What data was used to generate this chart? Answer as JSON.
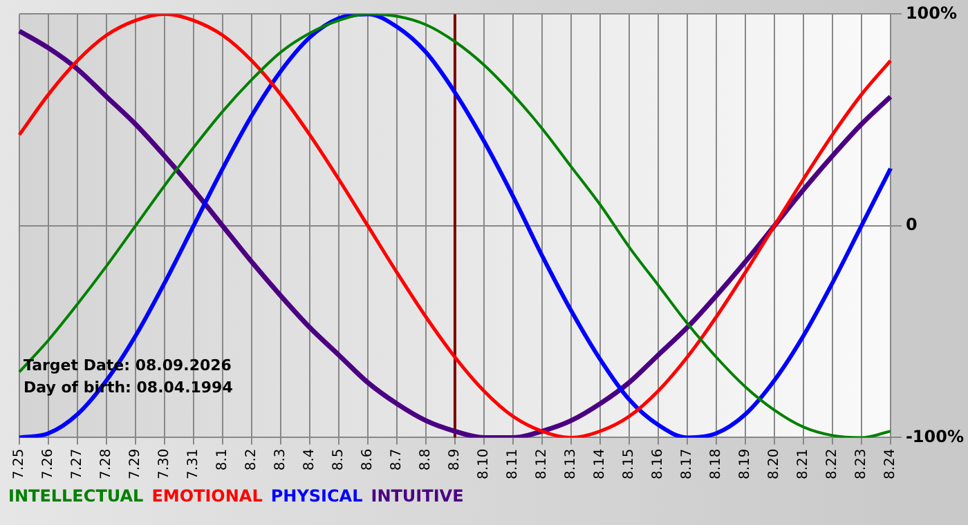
{
  "chart_data": {
    "type": "line",
    "categories": [
      "7.25",
      "7.26",
      "7.27",
      "7.28",
      "7.29",
      "7.30",
      "7.31",
      "8.1",
      "8.2",
      "8.3",
      "8.4",
      "8.5",
      "8.6",
      "8.7",
      "8.8",
      "8.9",
      "8.10",
      "8.11",
      "8.12",
      "8.13",
      "8.14",
      "8.15",
      "8.16",
      "8.17",
      "8.18",
      "8.19",
      "8.20",
      "8.21",
      "8.22",
      "8.23",
      "8.24"
    ],
    "series": [
      {
        "name": "INTELLECTUAL",
        "color": "#008000",
        "values": [
          -69,
          -54,
          -37,
          -19,
          0,
          19,
          37,
          54,
          69,
          82,
          91,
          97,
          100,
          99,
          95,
          87,
          76,
          62,
          46,
          28,
          10,
          -10,
          -28,
          -46,
          -62,
          -76,
          -87,
          -95,
          -99,
          -100,
          -97
        ]
      },
      {
        "name": "EMOTIONAL",
        "color": "#ff0000",
        "values": [
          43,
          62,
          78,
          90,
          97,
          100,
          97,
          90,
          78,
          62,
          43,
          22,
          0,
          -22,
          -43,
          -62,
          -78,
          -90,
          -97,
          -100,
          -97,
          -90,
          -78,
          -62,
          -43,
          -22,
          0,
          22,
          43,
          62,
          78
        ]
      },
      {
        "name": "PHYSICAL",
        "color": "#0000ff",
        "values": [
          -100,
          -98,
          -89,
          -73,
          -52,
          -27,
          0,
          27,
          52,
          73,
          89,
          98,
          100,
          94,
          82,
          63,
          40,
          14,
          -14,
          -40,
          -63,
          -82,
          -94,
          -100,
          -98,
          -89,
          -73,
          -52,
          -27,
          0,
          27
        ]
      },
      {
        "name": "INTUITIVE",
        "color": "#4b0082",
        "values": [
          92,
          84,
          74,
          61,
          48,
          33,
          17,
          0,
          -17,
          -33,
          -48,
          -61,
          -74,
          -84,
          -92,
          -97,
          -100,
          -100,
          -97,
          -92,
          -84,
          -74,
          -61,
          -48,
          -33,
          -17,
          0,
          17,
          33,
          48,
          61
        ]
      }
    ],
    "ylim": [
      -100,
      100
    ],
    "yticks": [
      {
        "value": 100,
        "label": "100%"
      },
      0,
      {
        "value": -100,
        "label": "-100%"
      }
    ],
    "grid": true,
    "legend": "bottom left",
    "marker": "none",
    "ref_lines": [
      {
        "axis": "x",
        "value": "8.9",
        "color": "#800000"
      }
    ],
    "annotations": [
      "Target Date: 08.09.2026",
      "Day of birth: 08.04.1994"
    ]
  }
}
